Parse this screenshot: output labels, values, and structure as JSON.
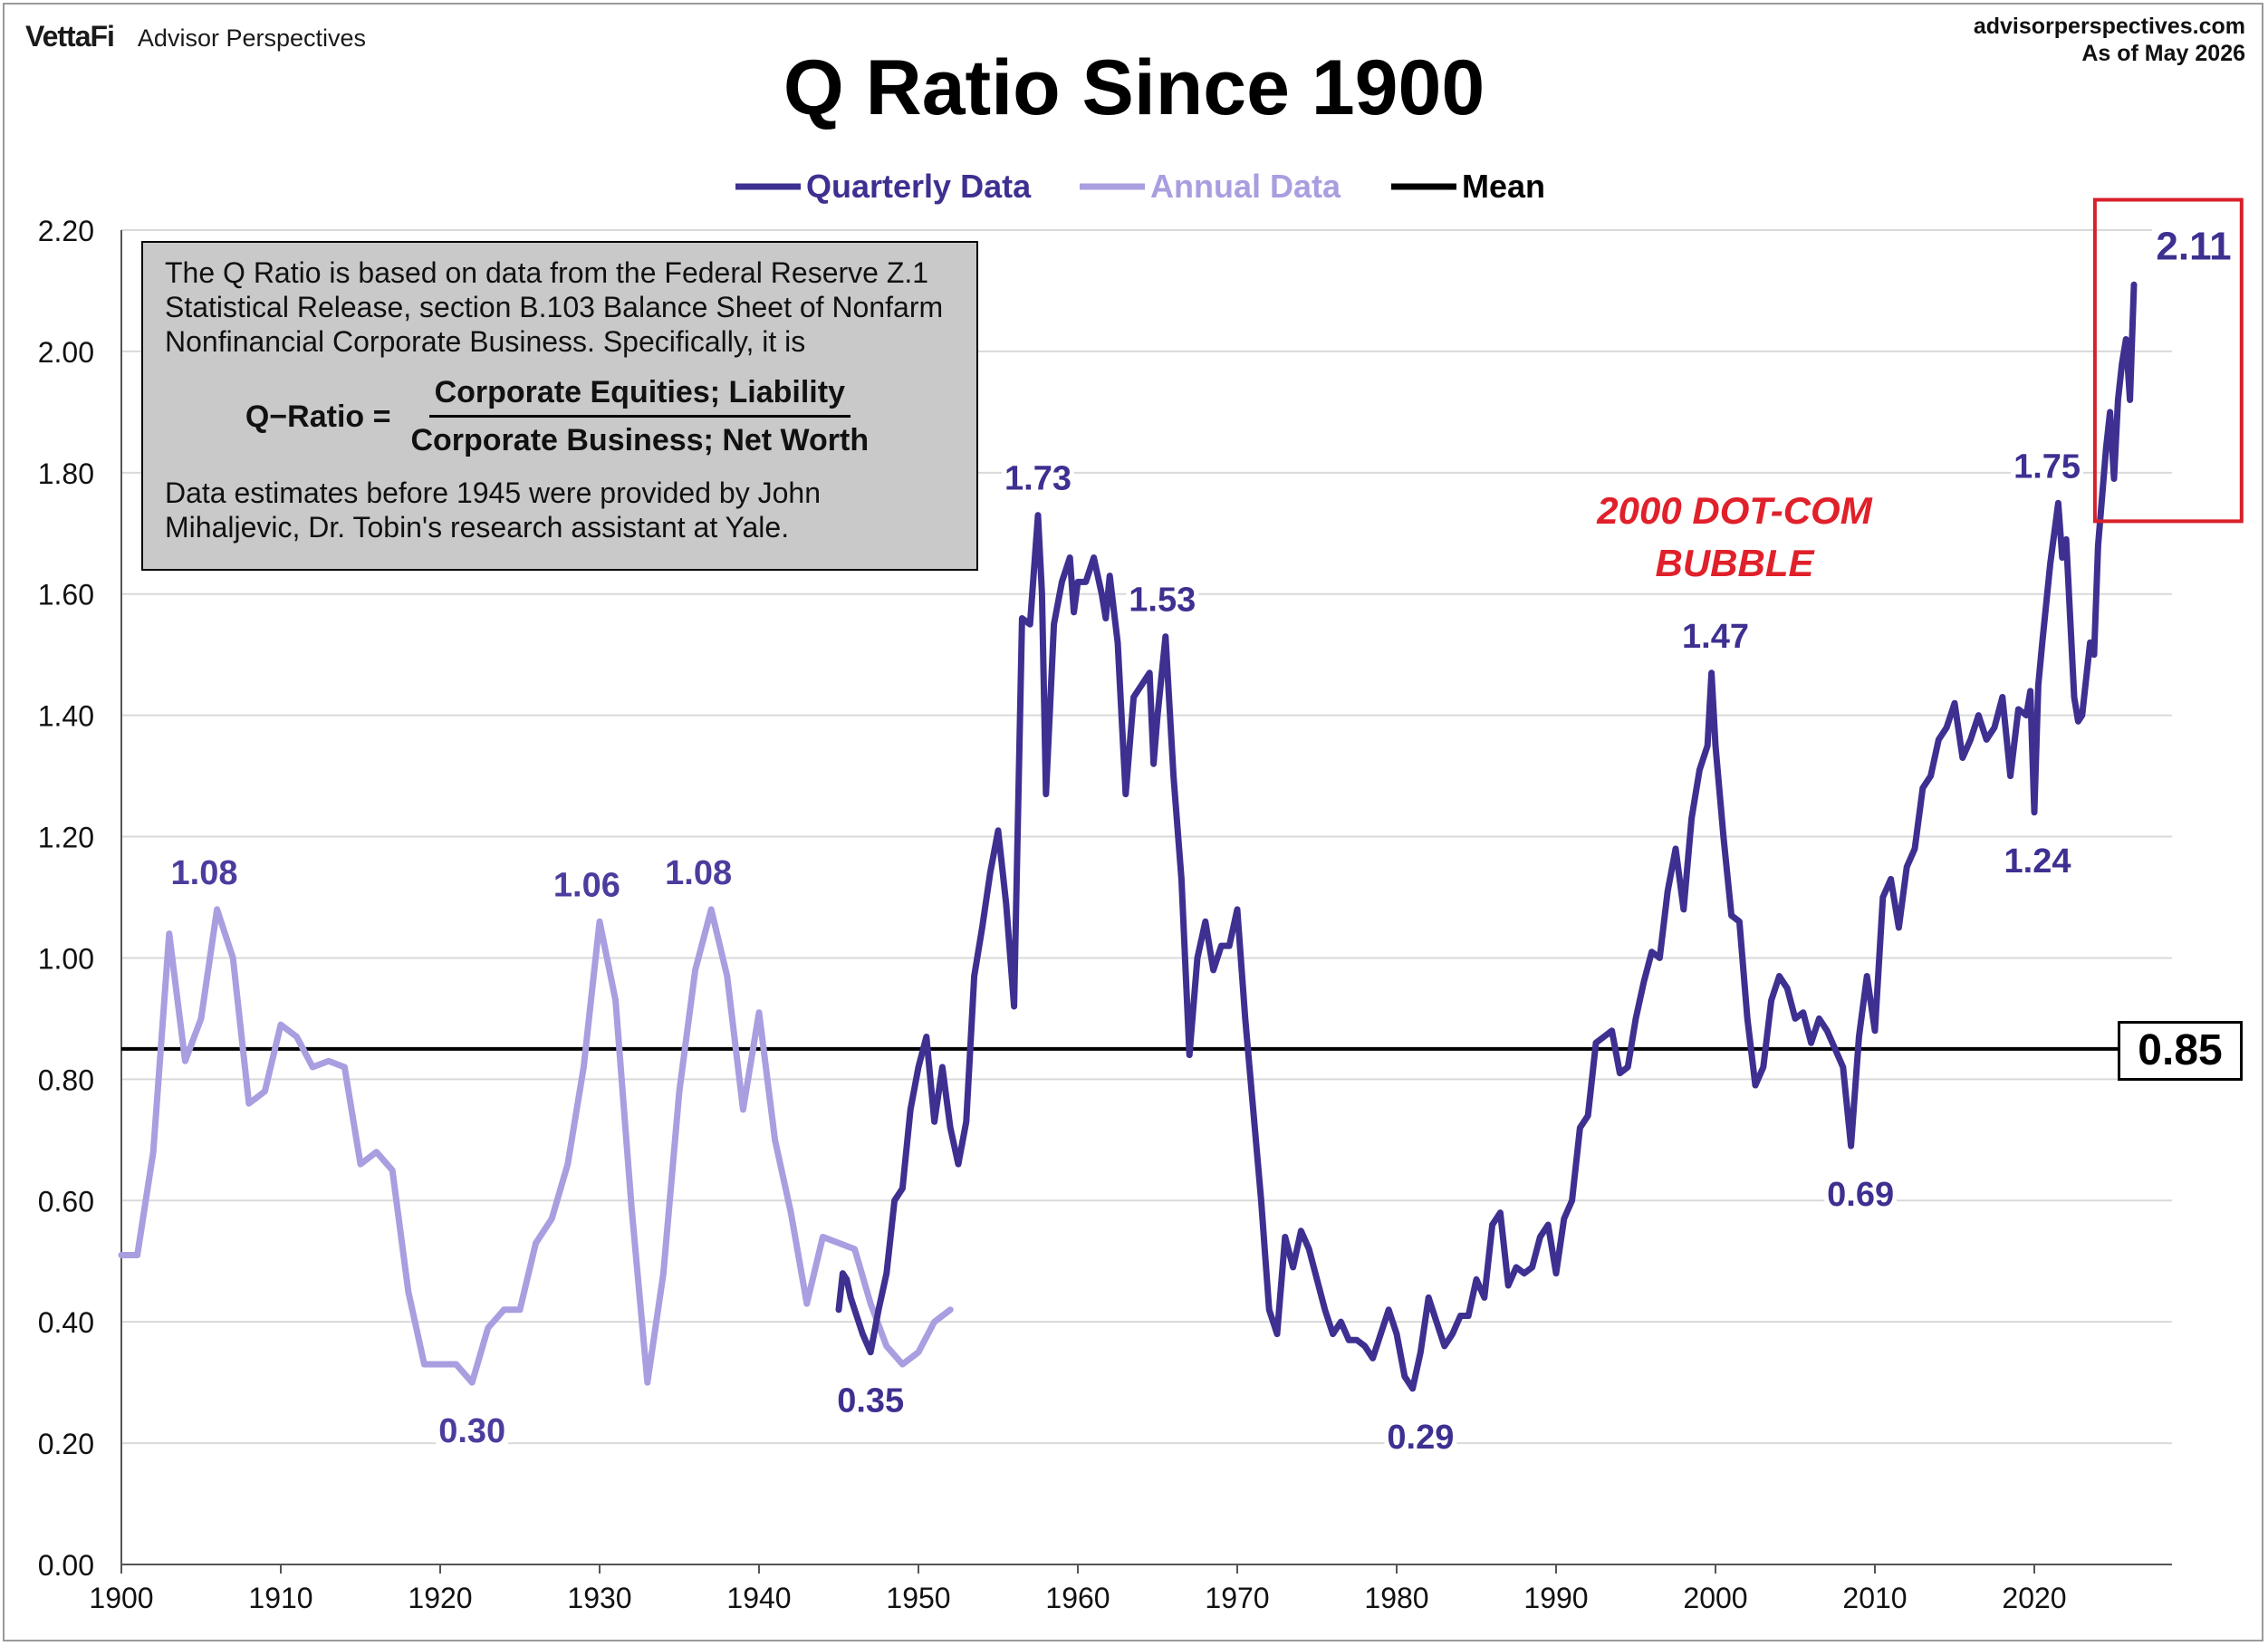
{
  "header": {
    "logo": "VettaFi",
    "logo_sub": "Advisor Perspectives",
    "source_url": "advisorperspectives.com",
    "as_of": "As of May 2026"
  },
  "colors": {
    "quarterly": "#3d3091",
    "annual": "#a89ee0",
    "mean": "#000000",
    "highlight": "#d8202a",
    "grid": "#d9d9d9"
  },
  "info_box": {
    "text": "The Q Ratio is based on data from the Federal Reserve Z.1 Statistical Release, section B.103 Balance Sheet of Nonfarm Nonfinancial Corporate Business. Specifically, it is",
    "formula_label": "Q−Ratio =",
    "numerator": "Corporate Equities; Liability",
    "denominator": "Corporate Business; Net Worth",
    "footnote": "Data estimates before 1945 were provided by John Mihaljevic, Dr. Tobin's research assistant at Yale."
  },
  "annotations": {
    "bubble_line1": "2000 DOT-COM",
    "bubble_line2": "BUBBLE",
    "mean_value": "0.85"
  },
  "chart_data": {
    "type": "line",
    "title": "Q Ratio Since 1900",
    "xlabel": "",
    "ylabel": "",
    "xlim": [
      1900,
      2027
    ],
    "ylim": [
      0,
      2.2
    ],
    "x_ticks": [
      "1900",
      "1910",
      "1920",
      "1930",
      "1940",
      "1950",
      "1960",
      "1970",
      "1980",
      "1990",
      "2000",
      "2010",
      "2020"
    ],
    "y_ticks": [
      "0.00",
      "0.20",
      "0.40",
      "0.60",
      "0.80",
      "1.00",
      "1.20",
      "1.40",
      "1.60",
      "1.80",
      "2.00",
      "2.20"
    ],
    "grid": "horizontal",
    "legend": "top-center",
    "mean": 0.85,
    "series": [
      {
        "name": "Quarterly Data",
        "points": [
          [
            1945.0,
            0.42
          ],
          [
            1945.25,
            0.48
          ],
          [
            1945.5,
            0.47
          ],
          [
            1945.75,
            0.44
          ],
          [
            1946.0,
            0.42
          ],
          [
            1946.5,
            0.38
          ],
          [
            1947.0,
            0.35
          ],
          [
            1947.5,
            0.42
          ],
          [
            1948.0,
            0.48
          ],
          [
            1948.5,
            0.6
          ],
          [
            1949.0,
            0.62
          ],
          [
            1949.5,
            0.75
          ],
          [
            1950.0,
            0.82
          ],
          [
            1950.5,
            0.87
          ],
          [
            1951.0,
            0.73
          ],
          [
            1951.5,
            0.82
          ],
          [
            1952.0,
            0.72
          ],
          [
            1952.5,
            0.66
          ],
          [
            1953.0,
            0.73
          ],
          [
            1953.5,
            0.97
          ],
          [
            1954.0,
            1.05
          ],
          [
            1954.5,
            1.14
          ],
          [
            1955.0,
            1.21
          ],
          [
            1955.5,
            1.09
          ],
          [
            1956.0,
            0.92
          ],
          [
            1956.5,
            1.56
          ],
          [
            1957.0,
            1.55
          ],
          [
            1957.5,
            1.73
          ],
          [
            1957.75,
            1.6
          ],
          [
            1958.0,
            1.27
          ],
          [
            1958.5,
            1.55
          ],
          [
            1959.0,
            1.62
          ],
          [
            1959.5,
            1.66
          ],
          [
            1959.75,
            1.57
          ],
          [
            1960.0,
            1.62
          ],
          [
            1960.5,
            1.62
          ],
          [
            1961.0,
            1.66
          ],
          [
            1961.5,
            1.6
          ],
          [
            1961.75,
            1.56
          ],
          [
            1962.0,
            1.63
          ],
          [
            1962.5,
            1.52
          ],
          [
            1963.0,
            1.27
          ],
          [
            1963.5,
            1.43
          ],
          [
            1964.0,
            1.45
          ],
          [
            1964.5,
            1.47
          ],
          [
            1964.75,
            1.32
          ],
          [
            1965.0,
            1.4
          ],
          [
            1965.5,
            1.53
          ],
          [
            1966.0,
            1.3
          ],
          [
            1966.5,
            1.13
          ],
          [
            1967.0,
            0.84
          ],
          [
            1967.5,
            1.0
          ],
          [
            1968.0,
            1.06
          ],
          [
            1968.5,
            0.98
          ],
          [
            1969.0,
            1.02
          ],
          [
            1969.5,
            1.02
          ],
          [
            1970.0,
            1.08
          ],
          [
            1970.5,
            0.9
          ],
          [
            1971.0,
            0.75
          ],
          [
            1971.5,
            0.6
          ],
          [
            1972.0,
            0.42
          ],
          [
            1972.5,
            0.38
          ],
          [
            1973.0,
            0.54
          ],
          [
            1973.5,
            0.49
          ],
          [
            1974.0,
            0.55
          ],
          [
            1974.5,
            0.52
          ],
          [
            1975.0,
            0.47
          ],
          [
            1975.5,
            0.42
          ],
          [
            1976.0,
            0.38
          ],
          [
            1976.5,
            0.4
          ],
          [
            1977.0,
            0.37
          ],
          [
            1977.5,
            0.37
          ],
          [
            1978.0,
            0.36
          ],
          [
            1978.5,
            0.34
          ],
          [
            1979.0,
            0.38
          ],
          [
            1979.5,
            0.42
          ],
          [
            1980.0,
            0.38
          ],
          [
            1980.5,
            0.31
          ],
          [
            1981.0,
            0.29
          ],
          [
            1981.5,
            0.35
          ],
          [
            1982.0,
            0.44
          ],
          [
            1982.5,
            0.4
          ],
          [
            1983.0,
            0.36
          ],
          [
            1983.5,
            0.38
          ],
          [
            1984.0,
            0.41
          ],
          [
            1984.5,
            0.41
          ],
          [
            1985.0,
            0.47
          ],
          [
            1985.5,
            0.44
          ],
          [
            1986.0,
            0.56
          ],
          [
            1986.5,
            0.58
          ],
          [
            1987.0,
            0.46
          ],
          [
            1987.5,
            0.49
          ],
          [
            1988.0,
            0.48
          ],
          [
            1988.5,
            0.49
          ],
          [
            1989.0,
            0.54
          ],
          [
            1989.5,
            0.56
          ],
          [
            1990.0,
            0.48
          ],
          [
            1990.5,
            0.57
          ],
          [
            1991.0,
            0.6
          ],
          [
            1991.5,
            0.72
          ],
          [
            1992.0,
            0.74
          ],
          [
            1992.5,
            0.86
          ],
          [
            1993.0,
            0.87
          ],
          [
            1993.5,
            0.88
          ],
          [
            1994.0,
            0.81
          ],
          [
            1994.5,
            0.82
          ],
          [
            1995.0,
            0.9
          ],
          [
            1995.5,
            0.96
          ],
          [
            1996.0,
            1.01
          ],
          [
            1996.5,
            1.0
          ],
          [
            1997.0,
            1.11
          ],
          [
            1997.5,
            1.18
          ],
          [
            1998.0,
            1.08
          ],
          [
            1998.5,
            1.23
          ],
          [
            1999.0,
            1.31
          ],
          [
            1999.5,
            1.35
          ],
          [
            1999.75,
            1.47
          ],
          [
            2000.0,
            1.35
          ],
          [
            2000.5,
            1.2
          ],
          [
            2001.0,
            1.07
          ],
          [
            2001.5,
            1.06
          ],
          [
            2002.0,
            0.9
          ],
          [
            2002.5,
            0.79
          ],
          [
            2003.0,
            0.82
          ],
          [
            2003.5,
            0.93
          ],
          [
            2004.0,
            0.97
          ],
          [
            2004.5,
            0.95
          ],
          [
            2005.0,
            0.9
          ],
          [
            2005.5,
            0.91
          ],
          [
            2006.0,
            0.86
          ],
          [
            2006.5,
            0.9
          ],
          [
            2007.0,
            0.88
          ],
          [
            2007.5,
            0.85
          ],
          [
            2008.0,
            0.82
          ],
          [
            2008.5,
            0.69
          ],
          [
            2009.0,
            0.87
          ],
          [
            2009.5,
            0.97
          ],
          [
            2010.0,
            0.88
          ],
          [
            2010.5,
            1.1
          ],
          [
            2011.0,
            1.13
          ],
          [
            2011.5,
            1.05
          ],
          [
            2012.0,
            1.15
          ],
          [
            2012.5,
            1.18
          ],
          [
            2013.0,
            1.28
          ],
          [
            2013.5,
            1.3
          ],
          [
            2014.0,
            1.36
          ],
          [
            2014.5,
            1.38
          ],
          [
            2015.0,
            1.42
          ],
          [
            2015.5,
            1.33
          ],
          [
            2016.0,
            1.36
          ],
          [
            2016.5,
            1.4
          ],
          [
            2017.0,
            1.36
          ],
          [
            2017.5,
            1.38
          ],
          [
            2018.0,
            1.43
          ],
          [
            2018.5,
            1.3
          ],
          [
            2019.0,
            1.41
          ],
          [
            2019.5,
            1.4
          ],
          [
            2019.75,
            1.44
          ],
          [
            2020.0,
            1.24
          ],
          [
            2020.25,
            1.45
          ],
          [
            2020.5,
            1.52
          ],
          [
            2021.0,
            1.65
          ],
          [
            2021.5,
            1.75
          ],
          [
            2021.75,
            1.66
          ],
          [
            2022.0,
            1.69
          ],
          [
            2022.5,
            1.43
          ],
          [
            2022.75,
            1.39
          ],
          [
            2023.0,
            1.4
          ],
          [
            2023.5,
            1.52
          ],
          [
            2023.75,
            1.5
          ],
          [
            2024.0,
            1.68
          ],
          [
            2024.5,
            1.84
          ],
          [
            2024.75,
            1.9
          ],
          [
            2025.0,
            1.79
          ],
          [
            2025.25,
            1.92
          ],
          [
            2025.5,
            1.98
          ],
          [
            2025.75,
            2.02
          ],
          [
            2026.0,
            1.92
          ],
          [
            2026.25,
            2.11
          ]
        ]
      },
      {
        "name": "Annual Data",
        "points": [
          [
            1900,
            0.51
          ],
          [
            1901,
            0.51
          ],
          [
            1902,
            0.68
          ],
          [
            1903,
            1.04
          ],
          [
            1904,
            0.83
          ],
          [
            1905,
            0.9
          ],
          [
            1906,
            1.08
          ],
          [
            1907,
            1.0
          ],
          [
            1908,
            0.76
          ],
          [
            1909,
            0.78
          ],
          [
            1910,
            0.89
          ],
          [
            1911,
            0.87
          ],
          [
            1912,
            0.82
          ],
          [
            1913,
            0.83
          ],
          [
            1914,
            0.82
          ],
          [
            1915,
            0.66
          ],
          [
            1916,
            0.68
          ],
          [
            1917,
            0.65
          ],
          [
            1918,
            0.45
          ],
          [
            1919,
            0.33
          ],
          [
            1920,
            0.33
          ],
          [
            1921,
            0.33
          ],
          [
            1922,
            0.3
          ],
          [
            1923,
            0.39
          ],
          [
            1924,
            0.42
          ],
          [
            1925,
            0.42
          ],
          [
            1926,
            0.53
          ],
          [
            1927,
            0.57
          ],
          [
            1928,
            0.66
          ],
          [
            1929,
            0.82
          ],
          [
            1930,
            1.06
          ],
          [
            1931,
            0.93
          ],
          [
            1932,
            0.59
          ],
          [
            1933,
            0.3
          ],
          [
            1934,
            0.48
          ],
          [
            1935,
            0.78
          ],
          [
            1936,
            0.98
          ],
          [
            1937,
            1.08
          ],
          [
            1938,
            0.97
          ],
          [
            1939,
            0.75
          ],
          [
            1940,
            0.91
          ],
          [
            1941,
            0.7
          ],
          [
            1942,
            0.58
          ],
          [
            1943,
            0.43
          ],
          [
            1944,
            0.54
          ],
          [
            1945,
            0.53
          ],
          [
            1946,
            0.52
          ],
          [
            1947,
            0.43
          ],
          [
            1948,
            0.36
          ],
          [
            1949,
            0.33
          ],
          [
            1950,
            0.35
          ],
          [
            1951,
            0.4
          ],
          [
            1952,
            0.42
          ]
        ]
      }
    ],
    "data_labels": [
      {
        "x": 1905.2,
        "y": 1.08,
        "label": "1.08",
        "series": "Annual Data",
        "above": true
      },
      {
        "x": 1922.0,
        "y": 0.3,
        "label": "0.30",
        "series": "Annual Data",
        "above": false
      },
      {
        "x": 1929.2,
        "y": 1.06,
        "label": "1.06",
        "series": "Annual Data",
        "above": true
      },
      {
        "x": 1936.2,
        "y": 1.08,
        "label": "1.08",
        "series": "Annual Data",
        "above": true
      },
      {
        "x": 1947.0,
        "y": 0.35,
        "label": "0.35",
        "series": "Quarterly Data",
        "above": false
      },
      {
        "x": 1957.5,
        "y": 1.73,
        "label": "1.73",
        "series": "Quarterly Data",
        "above": true
      },
      {
        "x": 1965.3,
        "y": 1.53,
        "label": "1.53",
        "series": "Quarterly Data",
        "above": true
      },
      {
        "x": 1981.5,
        "y": 0.29,
        "label": "0.29",
        "series": "Quarterly Data",
        "above": false
      },
      {
        "x": 2000.0,
        "y": 1.47,
        "label": "1.47",
        "series": "Quarterly Data",
        "above": true
      },
      {
        "x": 2009.1,
        "y": 0.69,
        "label": "0.69",
        "series": "Quarterly Data",
        "above": false
      },
      {
        "x": 2020.2,
        "y": 1.24,
        "label": "1.24",
        "series": "Quarterly Data",
        "above": false
      },
      {
        "x": 2020.8,
        "y": 1.75,
        "label": "1.75",
        "series": "Quarterly Data",
        "above": true
      },
      {
        "x": 2030.0,
        "y": 2.11,
        "label": "2.11",
        "series": "Quarterly Data",
        "above": true
      }
    ]
  }
}
